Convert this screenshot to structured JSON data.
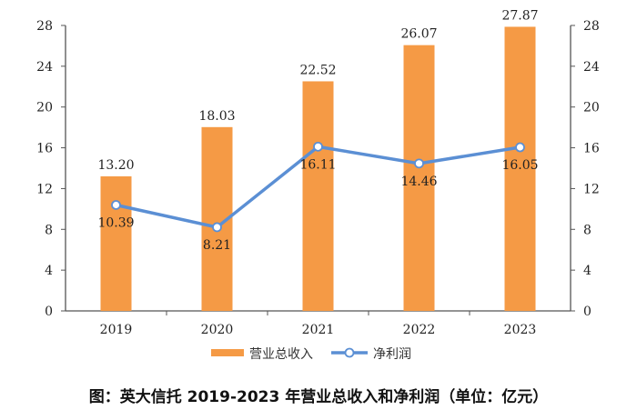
{
  "chart_data": {
    "type": "bar+line",
    "categories": [
      "2019",
      "2020",
      "2021",
      "2022",
      "2023"
    ],
    "series": [
      {
        "name": "营业总收入",
        "type": "bar",
        "values": [
          13.2,
          18.03,
          22.52,
          26.07,
          27.87
        ],
        "labels": [
          "13.20",
          "18.03",
          "22.52",
          "26.07",
          "27.87"
        ],
        "color": "#F59A45"
      },
      {
        "name": "净利润",
        "type": "line",
        "values": [
          10.39,
          8.21,
          16.11,
          14.46,
          16.05
        ],
        "labels": [
          "10.39",
          "8.21",
          "16.11",
          "14.46",
          "16.05"
        ],
        "color": "#5B8FD4"
      }
    ],
    "ylim": [
      0,
      28
    ],
    "yticks": [
      "0",
      "4",
      "8",
      "12",
      "16",
      "20",
      "24",
      "28"
    ],
    "y2lim": [
      0,
      28
    ],
    "legend": "bottom",
    "grid": false
  },
  "caption": "图：英大信托 2019-2023 年营业总收入和净利润（单位：亿元）"
}
